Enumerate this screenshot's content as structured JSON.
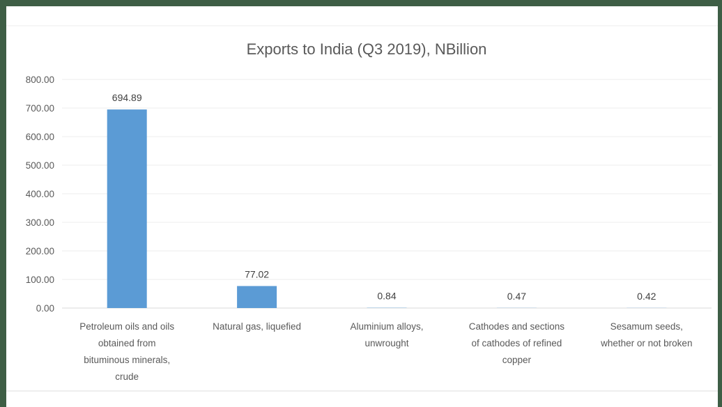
{
  "chart_data": {
    "type": "bar",
    "title": "Exports to India (Q3 2019), NBillion",
    "xlabel": "",
    "ylabel": "",
    "categories": [
      "Petroleum oils and oils obtained from bituminous minerals, crude",
      "Natural gas, liquefied",
      "Aluminium alloys, unwrought",
      "Cathodes and sections of cathodes of refined copper",
      "Sesamum seeds, whether or not broken"
    ],
    "category_lines": [
      [
        "Petroleum oils and oils",
        "obtained from",
        "bituminous minerals,",
        "crude"
      ],
      [
        "Natural gas, liquefied"
      ],
      [
        "Aluminium alloys,",
        "unwrought"
      ],
      [
        "Cathodes and sections",
        "of cathodes of refined",
        "copper"
      ],
      [
        "Sesamum seeds,",
        "whether or not broken"
      ]
    ],
    "values": [
      694.89,
      77.02,
      0.84,
      0.47,
      0.42
    ],
    "data_labels": [
      "694.89",
      "77.02",
      "0.84",
      "0.47",
      "0.42"
    ],
    "ylim": [
      0,
      800
    ],
    "yticks": [
      "0.00",
      "100.00",
      "200.00",
      "300.00",
      "400.00",
      "500.00",
      "600.00",
      "700.00",
      "800.00"
    ],
    "grid": true,
    "legend": "none",
    "bar_color": "#5b9bd5",
    "frame_color": "#3e5e45"
  }
}
